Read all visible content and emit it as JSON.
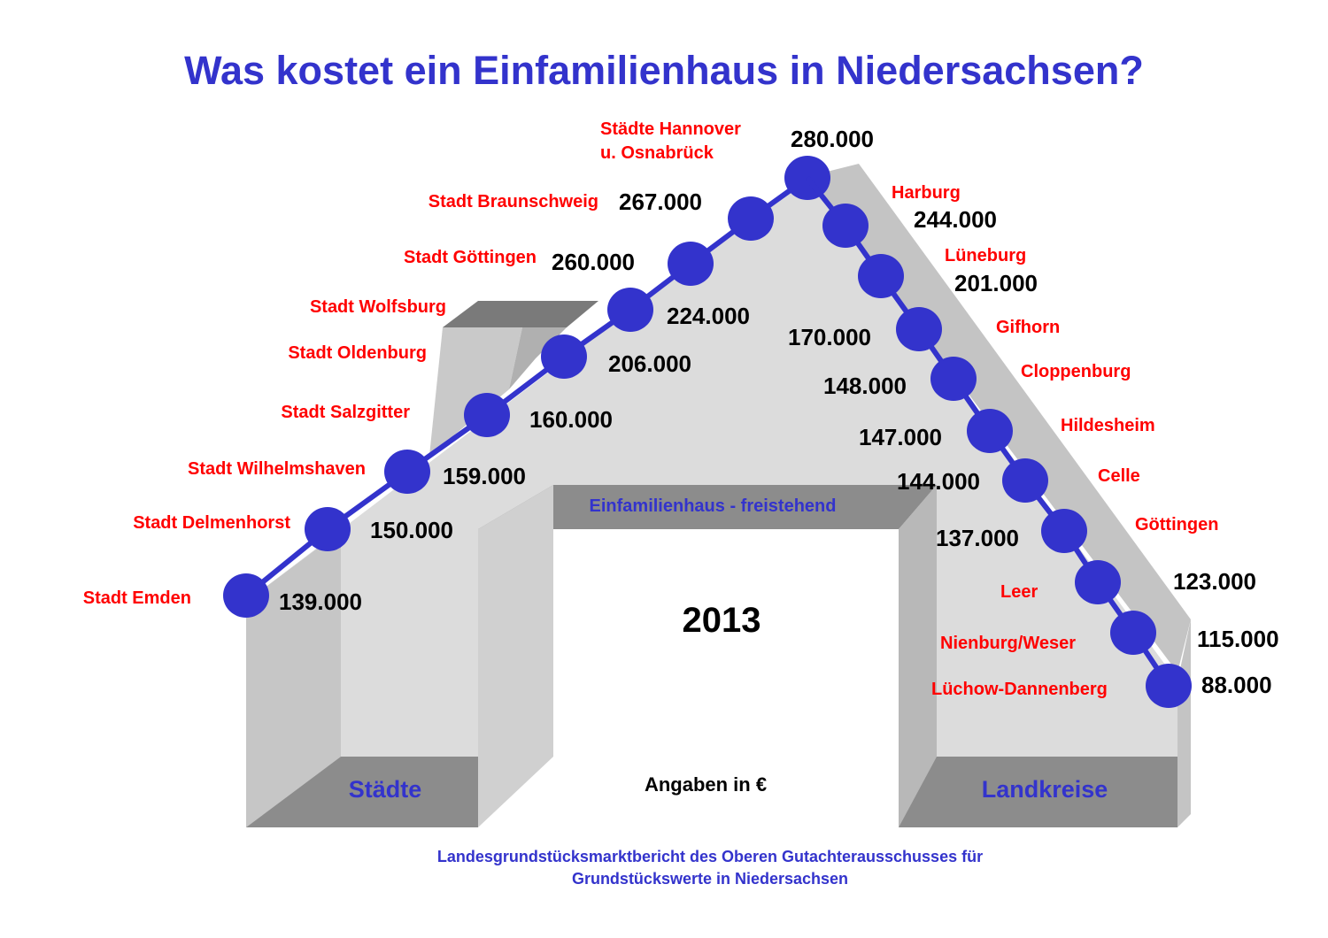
{
  "title": "Was kostet ein Einfamilienhaus in Niedersachsen?",
  "banner": "Einfamilienhaus - freistehend",
  "year": "2013",
  "unit_note": "Angaben in €",
  "base_left": "Städte",
  "base_right": "Landkreise",
  "source_line1": "Landesgrundstücksmarktbericht des Oberen Gutachterausschusses für",
  "source_line2": "Grundstückswerte in Niedersachsen",
  "colors": {
    "title": "#3333cc",
    "city_label": "#ff0000",
    "marker": "#3333cc",
    "house": "#d9d9d9"
  },
  "chart_data": {
    "type": "line",
    "title": "Was kostet ein Einfamilienhaus in Niedersachsen?",
    "unit": "€",
    "series": [
      {
        "name": "Städte",
        "points": [
          {
            "label": "Stadt Emden",
            "value": 139000,
            "value_text": "139.000"
          },
          {
            "label": "Stadt Delmenhorst",
            "value": 150000,
            "value_text": "150.000"
          },
          {
            "label": "Stadt Wilhelmshaven",
            "value": 159000,
            "value_text": "159.000"
          },
          {
            "label": "Stadt Salzgitter",
            "value": 160000,
            "value_text": "160.000"
          },
          {
            "label": "Stadt Oldenburg",
            "value": 206000,
            "value_text": "206.000"
          },
          {
            "label": "Stadt Wolfsburg",
            "value": 224000,
            "value_text": "224.000"
          },
          {
            "label": "Stadt Göttingen",
            "value": 260000,
            "value_text": "260.000"
          },
          {
            "label": "Stadt Braunschweig",
            "value": 267000,
            "value_text": "267.000"
          },
          {
            "label": "Städte Hannover u. Osnabrück",
            "label_lines": [
              "Städte Hannover",
              "u. Osnabrück"
            ],
            "value": 280000,
            "value_text": "280.000"
          }
        ]
      },
      {
        "name": "Landkreise",
        "points": [
          {
            "label": "Harburg",
            "value": 244000,
            "value_text": "244.000"
          },
          {
            "label": "Lüneburg",
            "value": 201000,
            "value_text": "201.000"
          },
          {
            "label": "Gifhorn",
            "value": 170000,
            "value_text": "170.000"
          },
          {
            "label": "Cloppenburg",
            "value": 148000,
            "value_text": "148.000"
          },
          {
            "label": "Hildesheim",
            "value": 147000,
            "value_text": "147.000"
          },
          {
            "label": "Celle",
            "value": 144000,
            "value_text": "144.000"
          },
          {
            "label": "Göttingen",
            "value": 137000,
            "value_text": "137.000"
          },
          {
            "label": "Leer",
            "value": 123000,
            "value_text": "123.000"
          },
          {
            "label": "Nienburg/Weser",
            "value": 115000,
            "value_text": "115.000"
          },
          {
            "label": "Lüchow-Dannenberg",
            "value": 88000,
            "value_text": "88.000"
          }
        ]
      }
    ]
  }
}
